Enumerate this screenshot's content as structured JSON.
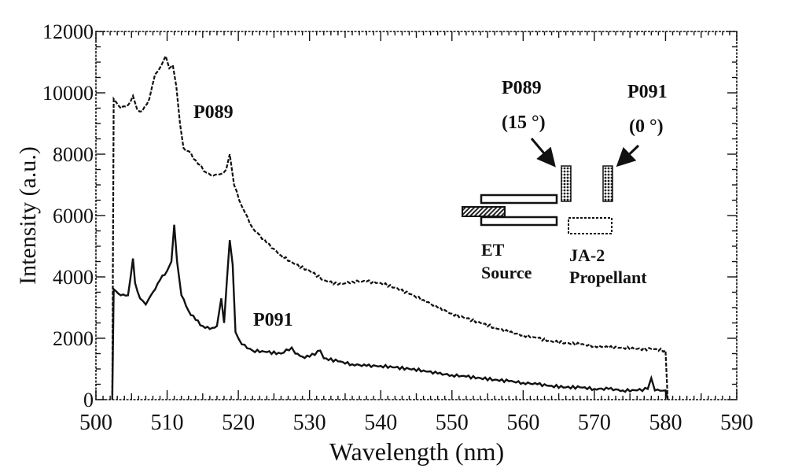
{
  "chart_data": {
    "type": "line",
    "title": "",
    "xlabel": "Wavelength (nm)",
    "ylabel": "Intensity (a.u.)",
    "xlim": [
      500,
      590
    ],
    "ylim": [
      0,
      12000
    ],
    "xticks": [
      500,
      510,
      520,
      530,
      540,
      550,
      560,
      570,
      580,
      590
    ],
    "yticks": [
      0,
      2000,
      4000,
      6000,
      8000,
      10000,
      12000
    ],
    "grid": false,
    "series": [
      {
        "name": "P089",
        "style": "dashed",
        "label_position": {
          "x": 514,
          "y": 9600
        },
        "x": [
          502.3,
          502.5,
          503.5,
          504.5,
          505.2,
          505.8,
          506.5,
          507.5,
          508.3,
          509.2,
          509.8,
          510.3,
          510.8,
          511.3,
          511.8,
          512.3,
          513.0,
          514.0,
          515.5,
          516.5,
          517.5,
          518.3,
          518.8,
          519.4,
          520.5,
          522,
          524,
          526,
          528,
          530,
          532,
          534,
          536,
          538,
          540,
          542,
          544,
          546,
          548,
          550,
          552,
          554,
          556,
          558,
          560,
          562,
          564,
          566,
          568,
          570,
          572,
          574,
          576,
          578,
          580,
          580.3
        ],
        "values": [
          0,
          9800,
          9500,
          9600,
          9900,
          9450,
          9400,
          9800,
          10600,
          10900,
          11200,
          10800,
          10900,
          10200,
          9000,
          8200,
          8100,
          7800,
          7400,
          7300,
          7350,
          7500,
          8000,
          7000,
          6300,
          5600,
          5100,
          4700,
          4400,
          4200,
          3900,
          3750,
          3850,
          3850,
          3800,
          3650,
          3450,
          3250,
          3000,
          2800,
          2650,
          2500,
          2350,
          2200,
          2100,
          2000,
          1900,
          1850,
          1800,
          1750,
          1700,
          1700,
          1650,
          1650,
          1600,
          0
        ]
      },
      {
        "name": "P091",
        "style": "solid",
        "label_position": {
          "x": 521.5,
          "y": 2600
        },
        "x": [
          502.3,
          502.5,
          503.5,
          504.5,
          505.2,
          505.5,
          506.2,
          507.0,
          508.0,
          509.0,
          510.0,
          510.6,
          511.0,
          511.4,
          512.0,
          513.0,
          514.0,
          515.0,
          516.0,
          517.0,
          517.6,
          518.0,
          518.4,
          518.8,
          519.2,
          519.6,
          520.5,
          522,
          524,
          526,
          527.5,
          528,
          529,
          530,
          531.5,
          532,
          534,
          536,
          538,
          540,
          542,
          544,
          546,
          548,
          550,
          552,
          554,
          556,
          558,
          560,
          562,
          564,
          566,
          568,
          570,
          572,
          574,
          576,
          577.5,
          578,
          578.5,
          580,
          580.3
        ],
        "values": [
          0,
          3600,
          3400,
          3400,
          4600,
          3800,
          3300,
          3100,
          3500,
          3900,
          4200,
          4500,
          5700,
          4500,
          3400,
          2900,
          2600,
          2400,
          2300,
          2400,
          3300,
          2500,
          3900,
          5200,
          4400,
          2200,
          1800,
          1600,
          1550,
          1500,
          1700,
          1500,
          1400,
          1400,
          1600,
          1350,
          1250,
          1150,
          1100,
          1100,
          1050,
          1000,
          950,
          850,
          800,
          750,
          700,
          650,
          600,
          550,
          500,
          450,
          400,
          400,
          350,
          350,
          300,
          300,
          350,
          700,
          300,
          300,
          0
        ]
      }
    ],
    "annotations": [
      {
        "text": "P089",
        "role": "series-label"
      },
      {
        "text": "P091",
        "role": "series-label"
      }
    ],
    "inset_diagram": {
      "labels": {
        "p089": "P089",
        "p089_angle": "(15 °)",
        "p091": "P091",
        "p091_angle": "(0 °)",
        "source_line1": "ET",
        "source_line2": "Source",
        "propellant_line1": "JA-2",
        "propellant_line2": "Propellant"
      }
    }
  }
}
